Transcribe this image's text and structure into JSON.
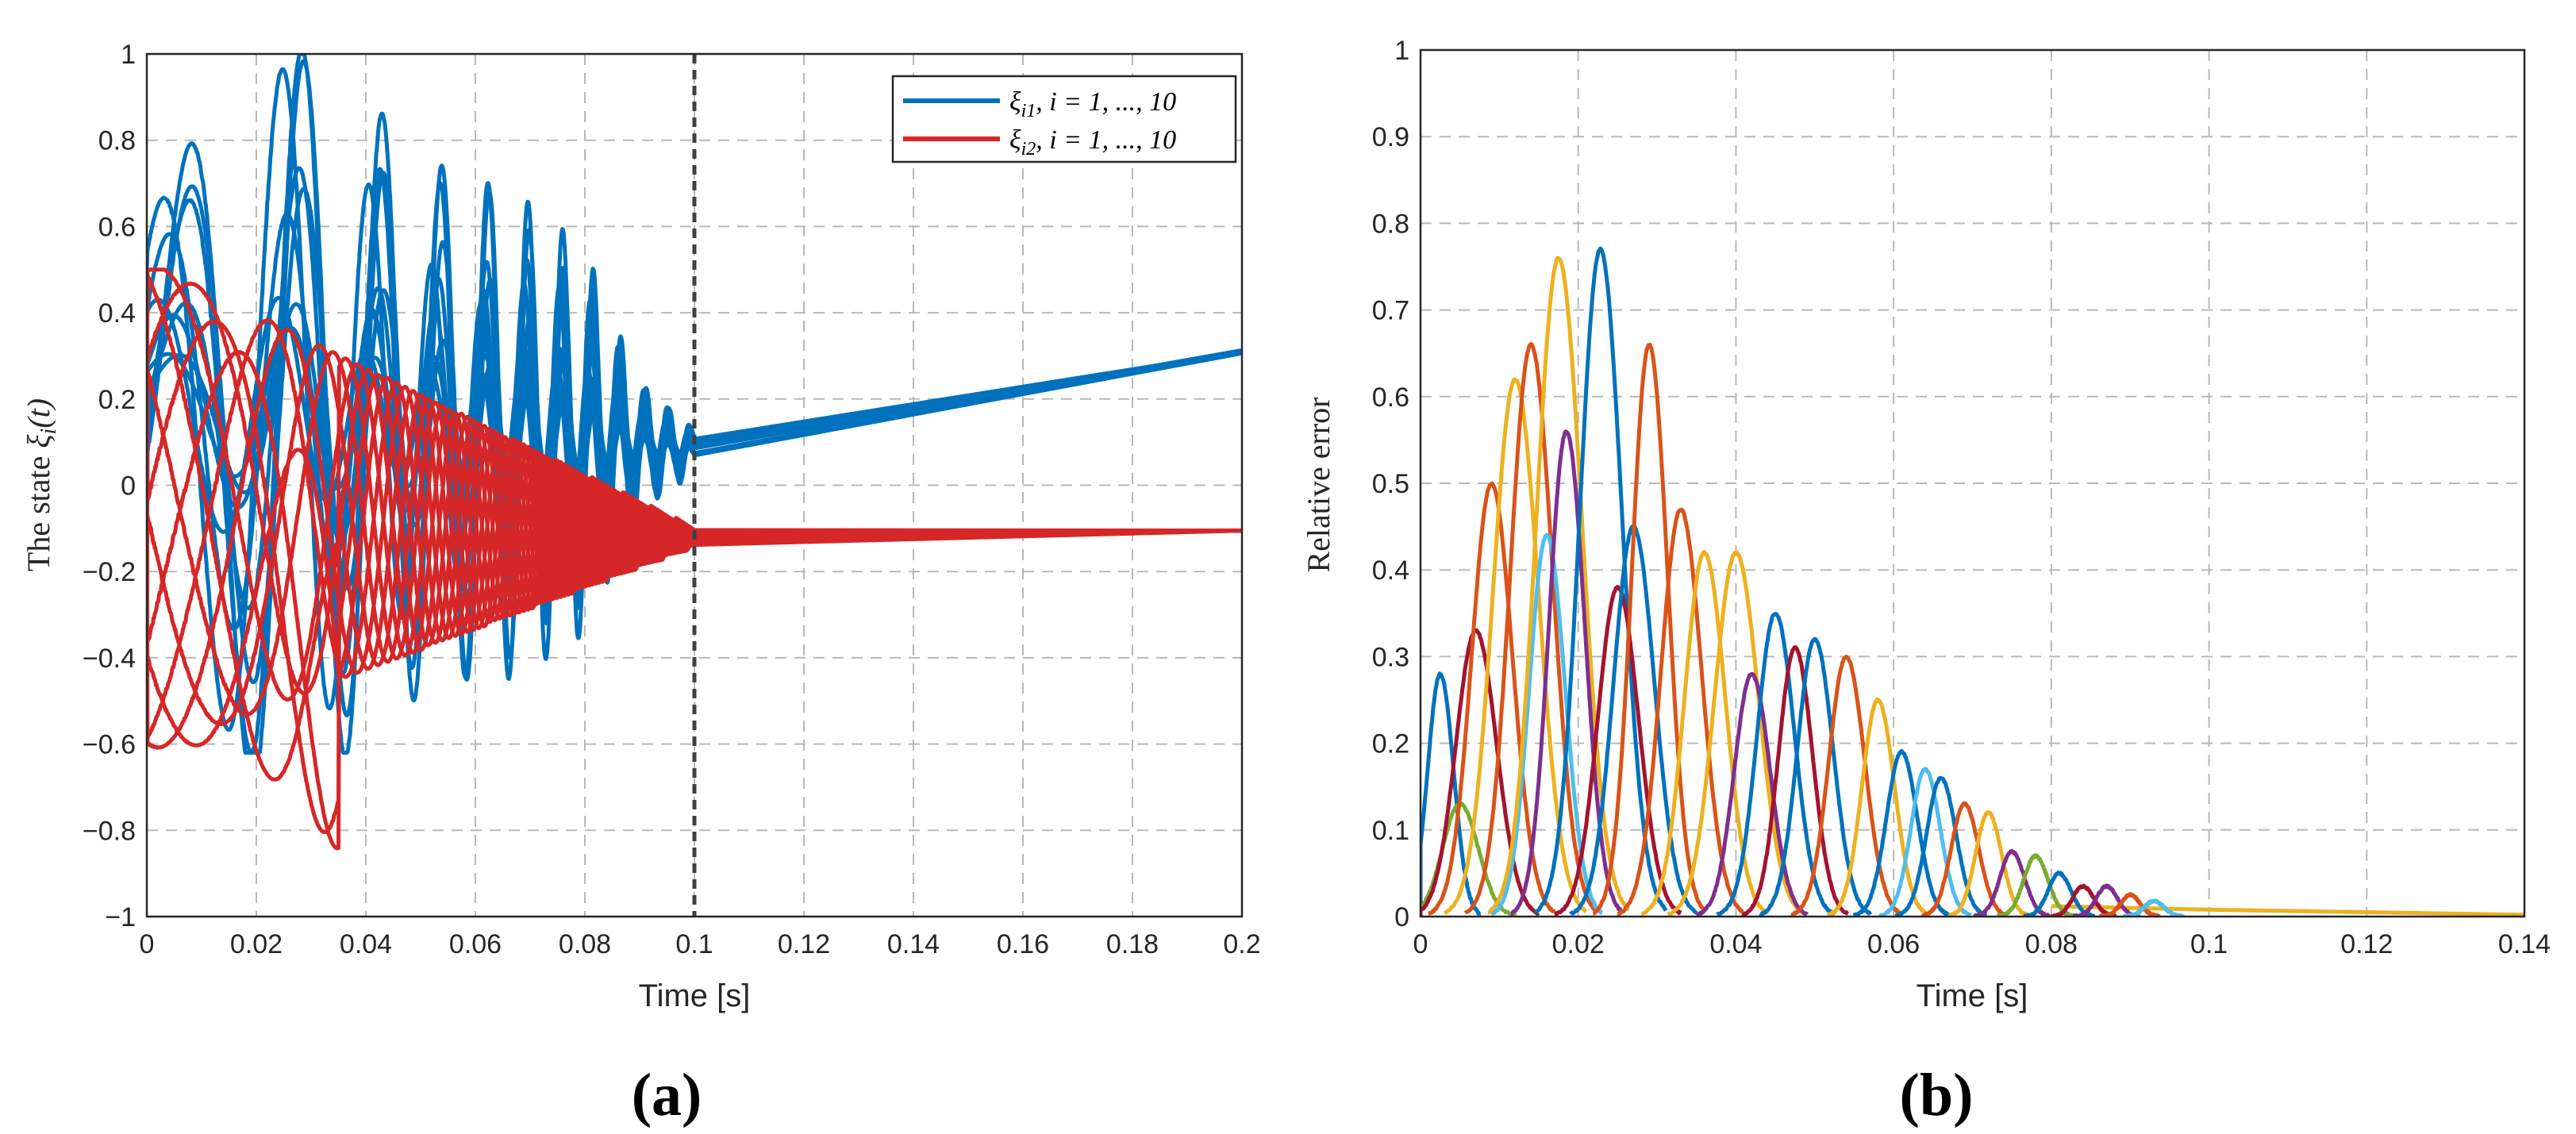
{
  "chart_data": [
    {
      "type": "line",
      "panel_label": "(a)",
      "xlabel": "Time [s]",
      "ylabel": "The state ξi(t)",
      "ylabel_main": "The state ",
      "ylabel_symbol": "ξ",
      "ylabel_sub": "i",
      "ylabel_arg": "(t)",
      "xlim": [
        0,
        0.2
      ],
      "ylim": [
        -1,
        1
      ],
      "x_ticks": [
        "0",
        "0.02",
        "0.04",
        "0.06",
        "0.08",
        "0.1",
        "0.12",
        "0.14",
        "0.16",
        "0.18",
        "0.2"
      ],
      "y_ticks": [
        "-1",
        "-0.8",
        "-0.6",
        "-0.4",
        "-0.2",
        "0",
        "0.2",
        "0.4",
        "0.6",
        "0.8",
        "1"
      ],
      "grid": true,
      "vline_x": 0.1,
      "legend_position": "top-right",
      "series": [
        {
          "name": "ξi1, i = 1, ..., 10",
          "label_symbol": "ξ",
          "label_sub": "i1",
          "label_rest": ", i = 1, ..., 10",
          "color": "#0072BD",
          "count": 10,
          "initial_values": [
            0.5,
            0.35,
            0.2,
            0.05,
            -0.1,
            -0.25,
            -0.35,
            -0.4,
            0.42,
            0.15
          ],
          "envelope": [
            [
              0,
              0.5
            ],
            [
              0.02,
              1.0
            ],
            [
              0.03,
              0.95
            ],
            [
              0.05,
              0.7
            ],
            [
              0.065,
              0.65
            ],
            [
              0.08,
              0.5
            ],
            [
              0.09,
              0.2
            ],
            [
              0.1,
              0.09
            ]
          ],
          "converged_start": [
            0.1,
            0.08
          ],
          "converged_end": [
            0.2,
            0.31
          ]
        },
        {
          "name": "ξi2, i = 1, ..., 10",
          "label_symbol": "ξ",
          "label_sub": "i2",
          "label_rest": ", i = 1, ..., 10",
          "color": "#D62728",
          "count": 10,
          "initial_values": [
            0.36,
            0.3,
            0.25,
            0.2,
            0.05,
            -0.3,
            -0.38,
            -0.4,
            0.15,
            -0.35
          ],
          "min_value": -0.88,
          "max_value": 0.5,
          "converged_start": [
            0.1,
            -0.12
          ],
          "converged_end": [
            0.2,
            -0.105
          ]
        }
      ]
    },
    {
      "type": "line",
      "panel_label": "(b)",
      "xlabel": "Time [s]",
      "ylabel": "Relative error",
      "xlim": [
        0,
        0.14
      ],
      "ylim": [
        0,
        1
      ],
      "x_ticks": [
        "0",
        "0.02",
        "0.04",
        "0.06",
        "0.08",
        "0.1",
        "0.12",
        "0.14"
      ],
      "y_ticks": [
        "0",
        "0.1",
        "0.2",
        "0.3",
        "0.4",
        "0.5",
        "0.6",
        "0.7",
        "0.8",
        "0.9",
        "1"
      ],
      "grid": true,
      "colors": [
        "#0072BD",
        "#D95319",
        "#EDB120",
        "#7E2F8E",
        "#77AC30",
        "#4DBEEE",
        "#A2142F"
      ],
      "peaks": [
        {
          "x": 0.0025,
          "y": 0.28,
          "w": 0.0016,
          "c": 0
        },
        {
          "x": 0.005,
          "y": 0.13,
          "w": 0.0022,
          "c": 4
        },
        {
          "x": 0.007,
          "y": 0.33,
          "w": 0.0025,
          "c": 6
        },
        {
          "x": 0.009,
          "y": 0.5,
          "w": 0.0025,
          "c": 1
        },
        {
          "x": 0.012,
          "y": 0.62,
          "w": 0.0028,
          "c": 2
        },
        {
          "x": 0.014,
          "y": 0.66,
          "w": 0.0026,
          "c": 1
        },
        {
          "x": 0.016,
          "y": 0.44,
          "w": 0.0022,
          "c": 5
        },
        {
          "x": 0.0175,
          "y": 0.76,
          "w": 0.0028,
          "c": 2
        },
        {
          "x": 0.0185,
          "y": 0.56,
          "w": 0.0022,
          "c": 3
        },
        {
          "x": 0.0228,
          "y": 0.77,
          "w": 0.0026,
          "c": 0
        },
        {
          "x": 0.025,
          "y": 0.38,
          "w": 0.0025,
          "c": 6
        },
        {
          "x": 0.027,
          "y": 0.45,
          "w": 0.0025,
          "c": 0
        },
        {
          "x": 0.029,
          "y": 0.66,
          "w": 0.0022,
          "c": 1
        },
        {
          "x": 0.033,
          "y": 0.47,
          "w": 0.0025,
          "c": 1
        },
        {
          "x": 0.036,
          "y": 0.42,
          "w": 0.0025,
          "c": 2
        },
        {
          "x": 0.04,
          "y": 0.42,
          "w": 0.0027,
          "c": 2
        },
        {
          "x": 0.042,
          "y": 0.28,
          "w": 0.0022,
          "c": 3
        },
        {
          "x": 0.045,
          "y": 0.35,
          "w": 0.0023,
          "c": 0
        },
        {
          "x": 0.0475,
          "y": 0.31,
          "w": 0.0021,
          "c": 6
        },
        {
          "x": 0.05,
          "y": 0.32,
          "w": 0.0022,
          "c": 0
        },
        {
          "x": 0.054,
          "y": 0.3,
          "w": 0.0022,
          "c": 1
        },
        {
          "x": 0.058,
          "y": 0.25,
          "w": 0.002,
          "c": 2
        },
        {
          "x": 0.061,
          "y": 0.19,
          "w": 0.0019,
          "c": 0
        },
        {
          "x": 0.064,
          "y": 0.17,
          "w": 0.0018,
          "c": 5
        },
        {
          "x": 0.066,
          "y": 0.16,
          "w": 0.0018,
          "c": 0
        },
        {
          "x": 0.069,
          "y": 0.13,
          "w": 0.0017,
          "c": 1
        },
        {
          "x": 0.072,
          "y": 0.12,
          "w": 0.0016,
          "c": 2
        },
        {
          "x": 0.075,
          "y": 0.075,
          "w": 0.0015,
          "c": 3
        },
        {
          "x": 0.078,
          "y": 0.07,
          "w": 0.0015,
          "c": 4
        },
        {
          "x": 0.081,
          "y": 0.05,
          "w": 0.0014,
          "c": 0
        },
        {
          "x": 0.084,
          "y": 0.035,
          "w": 0.0013,
          "c": 6
        },
        {
          "x": 0.087,
          "y": 0.035,
          "w": 0.0013,
          "c": 3
        },
        {
          "x": 0.09,
          "y": 0.025,
          "w": 0.0012,
          "c": 1
        },
        {
          "x": 0.093,
          "y": 0.018,
          "w": 0.0012,
          "c": 5
        }
      ],
      "tail": [
        [
          0.08,
          0.012
        ],
        [
          0.1,
          0.008
        ],
        [
          0.12,
          0.005
        ],
        [
          0.14,
          0.002
        ]
      ]
    }
  ]
}
